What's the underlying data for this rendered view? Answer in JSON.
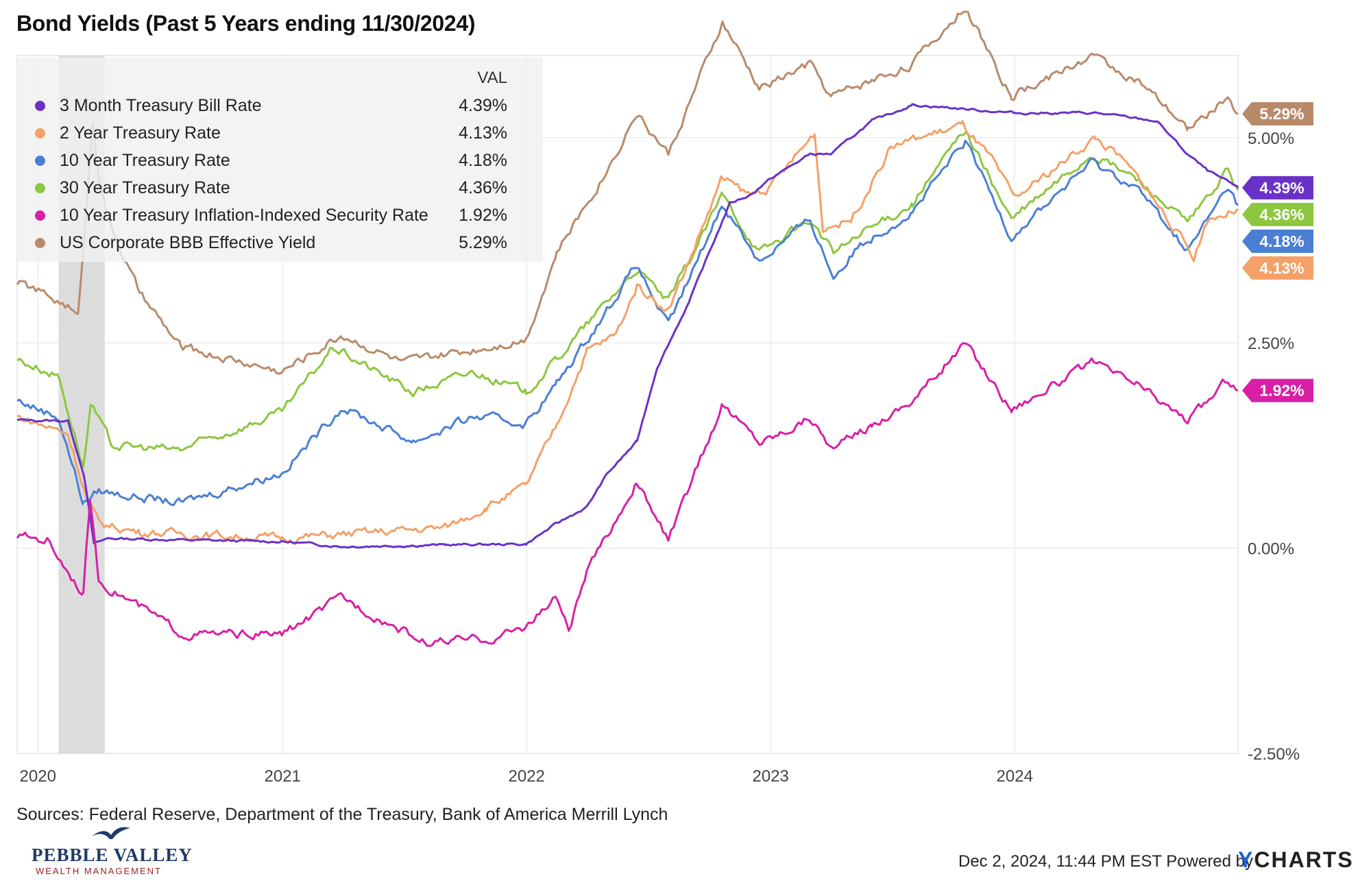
{
  "title": "Bond Yields (Past 5 Years ending 11/30/2024)",
  "sources": "Sources: Federal Reserve, Department of the Treasury, Bank of America Merrill Lynch",
  "footer": {
    "timestamp": "Dec 2, 2024, 11:44 PM EST Powered by",
    "brand_y": "Y",
    "brand_rest": "CHARTS"
  },
  "logo": {
    "main": "PEBBLE VALLEY",
    "sub": "WEALTH MANAGEMENT",
    "icon": "bird-icon"
  },
  "chart_data": {
    "type": "line",
    "title": "Bond Yields (Past 5 Years ending 11/30/2024)",
    "legend_header": "VAL",
    "legend_position": "top-left",
    "grid": true,
    "x_range": [
      "2019-12-01",
      "2024-11-30"
    ],
    "ylim": [
      -2.5,
      6.0
    ],
    "y_ticks": [
      {
        "value": -2.5,
        "label": "-2.50%"
      },
      {
        "value": 0.0,
        "label": "0.00%"
      },
      {
        "value": 2.5,
        "label": "2.50%"
      },
      {
        "value": 5.0,
        "label": "5.00%"
      }
    ],
    "x_ticks": [
      {
        "date": "2020-01-01",
        "label": "2020"
      },
      {
        "date": "2021-01-01",
        "label": "2021"
      },
      {
        "date": "2022-01-01",
        "label": "2022"
      },
      {
        "date": "2023-01-01",
        "label": "2023"
      },
      {
        "date": "2024-01-01",
        "label": "2024"
      }
    ],
    "recession_band": [
      "2020-02-01",
      "2020-04-10"
    ],
    "series": [
      {
        "name": "3 Month Treasury Bill Rate",
        "value_label": "4.39%",
        "color": "#6a31c9",
        "points": [
          [
            "2019-12-01",
            1.56
          ],
          [
            "2020-02-15",
            1.55
          ],
          [
            "2020-03-10",
            0.9
          ],
          [
            "2020-03-25",
            0.05
          ],
          [
            "2020-04-15",
            0.12
          ],
          [
            "2020-08-01",
            0.1
          ],
          [
            "2021-01-01",
            0.08
          ],
          [
            "2021-04-01",
            0.02
          ],
          [
            "2021-09-01",
            0.04
          ],
          [
            "2021-12-31",
            0.05
          ],
          [
            "2022-02-15",
            0.3
          ],
          [
            "2022-04-01",
            0.5
          ],
          [
            "2022-05-01",
            0.9
          ],
          [
            "2022-06-15",
            1.3
          ],
          [
            "2022-07-15",
            2.2
          ],
          [
            "2022-09-01",
            3.0
          ],
          [
            "2022-10-01",
            3.6
          ],
          [
            "2022-11-01",
            4.2
          ],
          [
            "2022-12-01",
            4.3
          ],
          [
            "2023-01-01",
            4.5
          ],
          [
            "2023-03-01",
            4.8
          ],
          [
            "2023-04-01",
            4.8
          ],
          [
            "2023-06-01",
            5.2
          ],
          [
            "2023-08-01",
            5.4
          ],
          [
            "2024-01-01",
            5.3
          ],
          [
            "2024-05-01",
            5.3
          ],
          [
            "2024-08-01",
            5.2
          ],
          [
            "2024-09-15",
            4.8
          ],
          [
            "2024-10-15",
            4.6
          ],
          [
            "2024-11-30",
            4.39
          ]
        ]
      },
      {
        "name": "2 Year Treasury Rate",
        "value_label": "4.13%",
        "color": "#f5a068",
        "points": [
          [
            "2019-12-01",
            1.6
          ],
          [
            "2020-02-15",
            1.4
          ],
          [
            "2020-03-15",
            0.6
          ],
          [
            "2020-04-01",
            0.3
          ],
          [
            "2020-06-01",
            0.2
          ],
          [
            "2020-12-31",
            0.12
          ],
          [
            "2021-06-01",
            0.2
          ],
          [
            "2021-09-01",
            0.25
          ],
          [
            "2021-11-01",
            0.5
          ],
          [
            "2021-12-31",
            0.75
          ],
          [
            "2022-02-15",
            1.5
          ],
          [
            "2022-04-01",
            2.4
          ],
          [
            "2022-05-15",
            2.6
          ],
          [
            "2022-06-15",
            3.2
          ],
          [
            "2022-08-01",
            2.9
          ],
          [
            "2022-09-01",
            3.5
          ],
          [
            "2022-10-20",
            4.5
          ],
          [
            "2022-12-01",
            4.3
          ],
          [
            "2023-01-01",
            4.4
          ],
          [
            "2023-03-08",
            5.05
          ],
          [
            "2023-03-20",
            3.9
          ],
          [
            "2023-05-01",
            4.0
          ],
          [
            "2023-07-01",
            4.9
          ],
          [
            "2023-10-15",
            5.15
          ],
          [
            "2023-11-30",
            4.7
          ],
          [
            "2023-12-31",
            4.25
          ],
          [
            "2024-04-30",
            5.0
          ],
          [
            "2024-06-01",
            4.8
          ],
          [
            "2024-07-15",
            4.4
          ],
          [
            "2024-09-25",
            3.55
          ],
          [
            "2024-10-15",
            4.0
          ],
          [
            "2024-11-30",
            4.13
          ]
        ]
      },
      {
        "name": "10 Year Treasury Rate",
        "value_label": "4.18%",
        "color": "#4a7fd4",
        "points": [
          [
            "2019-12-01",
            1.8
          ],
          [
            "2020-02-01",
            1.6
          ],
          [
            "2020-03-09",
            0.55
          ],
          [
            "2020-04-01",
            0.7
          ],
          [
            "2020-08-01",
            0.55
          ],
          [
            "2020-12-31",
            0.92
          ],
          [
            "2021-03-31",
            1.72
          ],
          [
            "2021-07-15",
            1.3
          ],
          [
            "2021-10-15",
            1.6
          ],
          [
            "2021-12-31",
            1.52
          ],
          [
            "2022-02-15",
            2.0
          ],
          [
            "2022-05-01",
            2.9
          ],
          [
            "2022-06-14",
            3.45
          ],
          [
            "2022-08-01",
            2.7
          ],
          [
            "2022-10-21",
            4.2
          ],
          [
            "2022-12-15",
            3.5
          ],
          [
            "2023-03-01",
            4.0
          ],
          [
            "2023-04-05",
            3.3
          ],
          [
            "2023-05-15",
            3.7
          ],
          [
            "2023-08-01",
            4.1
          ],
          [
            "2023-10-19",
            4.95
          ],
          [
            "2023-12-27",
            3.8
          ],
          [
            "2024-04-25",
            4.7
          ],
          [
            "2024-07-01",
            4.4
          ],
          [
            "2024-09-16",
            3.62
          ],
          [
            "2024-11-15",
            4.4
          ],
          [
            "2024-11-30",
            4.18
          ]
        ]
      },
      {
        "name": "30 Year Treasury Rate",
        "value_label": "4.36%",
        "color": "#8dc63f",
        "points": [
          [
            "2019-12-01",
            2.3
          ],
          [
            "2020-02-01",
            2.1
          ],
          [
            "2020-03-09",
            1.0
          ],
          [
            "2020-03-20",
            1.75
          ],
          [
            "2020-04-20",
            1.25
          ],
          [
            "2020-08-01",
            1.2
          ],
          [
            "2020-12-31",
            1.65
          ],
          [
            "2021-03-18",
            2.45
          ],
          [
            "2021-07-15",
            1.9
          ],
          [
            "2021-10-15",
            2.15
          ],
          [
            "2021-12-31",
            1.9
          ],
          [
            "2022-02-15",
            2.3
          ],
          [
            "2022-05-01",
            3.0
          ],
          [
            "2022-06-14",
            3.4
          ],
          [
            "2022-08-01",
            3.0
          ],
          [
            "2022-10-21",
            4.3
          ],
          [
            "2022-12-15",
            3.6
          ],
          [
            "2023-03-01",
            4.0
          ],
          [
            "2023-04-05",
            3.6
          ],
          [
            "2023-06-01",
            3.9
          ],
          [
            "2023-08-01",
            4.2
          ],
          [
            "2023-10-19",
            5.1
          ],
          [
            "2023-12-27",
            4.0
          ],
          [
            "2024-04-25",
            4.8
          ],
          [
            "2024-07-01",
            4.5
          ],
          [
            "2024-09-16",
            3.95
          ],
          [
            "2024-11-15",
            4.6
          ],
          [
            "2024-11-30",
            4.36
          ]
        ]
      },
      {
        "name": "10 Year Treasury Inflation-Indexed Security Rate",
        "value_label": "1.92%",
        "color": "#d81fa6",
        "points": [
          [
            "2019-12-01",
            0.15
          ],
          [
            "2020-01-15",
            0.1
          ],
          [
            "2020-03-09",
            -0.55
          ],
          [
            "2020-03-19",
            0.6
          ],
          [
            "2020-04-01",
            -0.4
          ],
          [
            "2020-08-06",
            -1.05
          ],
          [
            "2020-12-31",
            -1.05
          ],
          [
            "2021-03-31",
            -0.6
          ],
          [
            "2021-08-01",
            -1.15
          ],
          [
            "2021-11-15",
            -1.1
          ],
          [
            "2021-12-31",
            -0.95
          ],
          [
            "2022-02-15",
            -0.6
          ],
          [
            "2022-03-05",
            -1.0
          ],
          [
            "2022-04-01",
            -0.3
          ],
          [
            "2022-06-14",
            0.8
          ],
          [
            "2022-08-01",
            0.1
          ],
          [
            "2022-10-21",
            1.75
          ],
          [
            "2022-12-15",
            1.3
          ],
          [
            "2023-01-15",
            1.4
          ],
          [
            "2023-03-01",
            1.6
          ],
          [
            "2023-04-05",
            1.2
          ],
          [
            "2023-06-01",
            1.5
          ],
          [
            "2023-08-01",
            1.8
          ],
          [
            "2023-10-19",
            2.5
          ],
          [
            "2023-12-27",
            1.7
          ],
          [
            "2024-04-25",
            2.25
          ],
          [
            "2024-07-01",
            2.0
          ],
          [
            "2024-09-16",
            1.55
          ],
          [
            "2024-11-15",
            2.05
          ],
          [
            "2024-11-30",
            1.92
          ]
        ]
      },
      {
        "name": "US Corporate BBB Effective Yield",
        "value_label": "5.29%",
        "color": "#b98a6a",
        "points": [
          [
            "2019-12-01",
            3.25
          ],
          [
            "2020-02-15",
            2.95
          ],
          [
            "2020-03-01",
            2.8
          ],
          [
            "2020-03-12",
            4.0
          ],
          [
            "2020-03-23",
            5.2
          ],
          [
            "2020-04-01",
            4.6
          ],
          [
            "2020-04-15",
            4.0
          ],
          [
            "2020-06-01",
            3.1
          ],
          [
            "2020-08-01",
            2.45
          ],
          [
            "2020-12-31",
            2.15
          ],
          [
            "2021-03-31",
            2.6
          ],
          [
            "2021-07-01",
            2.25
          ],
          [
            "2021-12-31",
            2.55
          ],
          [
            "2022-02-15",
            3.6
          ],
          [
            "2022-05-01",
            4.6
          ],
          [
            "2022-06-14",
            5.3
          ],
          [
            "2022-08-01",
            4.8
          ],
          [
            "2022-10-21",
            6.4
          ],
          [
            "2022-12-15",
            5.6
          ],
          [
            "2023-03-01",
            5.9
          ],
          [
            "2023-04-01",
            5.5
          ],
          [
            "2023-06-01",
            5.7
          ],
          [
            "2023-08-01",
            5.9
          ],
          [
            "2023-10-19",
            6.6
          ],
          [
            "2023-12-27",
            5.5
          ],
          [
            "2024-04-25",
            6.0
          ],
          [
            "2024-07-01",
            5.7
          ],
          [
            "2024-09-16",
            5.1
          ],
          [
            "2024-11-15",
            5.5
          ],
          [
            "2024-11-30",
            5.29
          ]
        ]
      }
    ]
  }
}
